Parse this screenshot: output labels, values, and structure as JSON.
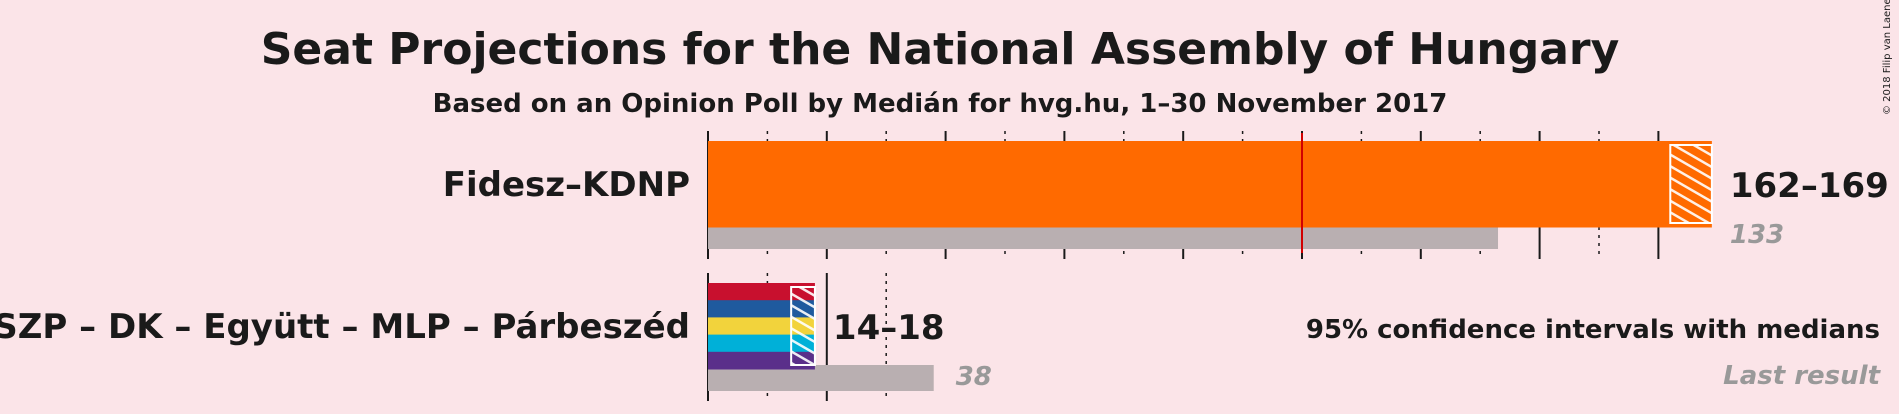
{
  "chart_data": {
    "type": "bar",
    "title": "Seat Projections for the National Assembly of Hungary",
    "subtitle": "Based on an Opinion Poll by Medián for hvg.hu, 1–30 November 2017",
    "copyright": "© 2018 Filip van Laenen",
    "majority": 100,
    "xlim": [
      0,
      170
    ],
    "categories": [
      "Fidesz–KDNP",
      "MSZP – DK – Együtt – MLP – Párbeszéd"
    ],
    "series": [
      {
        "party": "Fidesz–KDNP",
        "ci_low": 162,
        "ci_high": 169,
        "range_label": "162–169",
        "last_result": 133,
        "last_label": "133",
        "colors": [
          "#ff6a00"
        ]
      },
      {
        "party": "MSZP – DK – Együtt – MLP – Párbeszéd",
        "ci_low": 14,
        "ci_high": 18,
        "range_label": "14–18",
        "last_result": 38,
        "last_label": "38",
        "colors": [
          "#c8102e",
          "#1f5a9e",
          "#f2d33c",
          "#00b0d8",
          "#5a2f8a"
        ]
      }
    ],
    "legend": {
      "ci_text": "95% confidence intervals with medians",
      "last_text": "Last result",
      "placement": "bottom-right"
    },
    "colors": {
      "background": "#fbe4e8",
      "last_result_bar": "#b9afb1",
      "majority_line": "#d10000"
    }
  }
}
